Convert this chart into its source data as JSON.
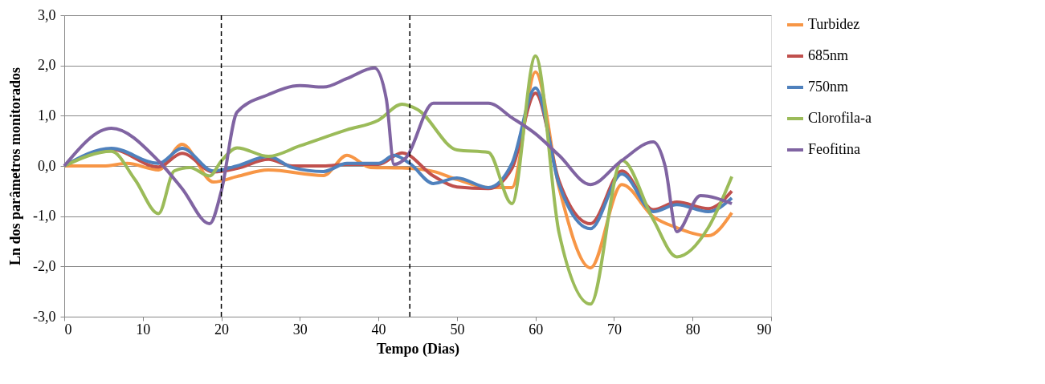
{
  "chart_data": {
    "type": "line",
    "xlabel": "Tempo (Dias)",
    "ylabel": "Ln dos parâmetros monitorados",
    "xlim": [
      0,
      90
    ],
    "xticks": [
      0,
      10,
      20,
      30,
      40,
      50,
      60,
      70,
      80,
      90
    ],
    "ylim": [
      -3,
      3
    ],
    "yticks": [
      {
        "value": -3,
        "label": "-3,0"
      },
      {
        "value": -2,
        "label": "-2,0"
      },
      {
        "value": -1,
        "label": "-1,0"
      },
      {
        "value": 0,
        "label": "0,0"
      },
      {
        "value": 1,
        "label": "1,0"
      },
      {
        "value": 2,
        "label": "2,0"
      },
      {
        "value": 3,
        "label": "3,0"
      }
    ],
    "grid": "y",
    "legend": "right",
    "marker": "none",
    "line_style": "solid",
    "ref_lines": [
      {
        "axis": "x",
        "value": 20,
        "color": "#000000",
        "line_style": "dashed"
      },
      {
        "axis": "x",
        "value": 44,
        "color": "#000000",
        "line_style": "dashed"
      }
    ],
    "series": [
      {
        "name": "Turbidez",
        "color": "#f79646",
        "x": [
          0,
          5,
          8,
          12,
          15,
          19,
          22,
          26,
          33,
          36,
          39,
          43,
          47,
          50,
          54,
          57,
          60,
          63,
          67,
          71,
          75,
          78,
          82,
          85
        ],
        "values": [
          0,
          0,
          0.05,
          -0.08,
          0.43,
          -0.32,
          -0.21,
          -0.08,
          -0.19,
          0.21,
          -0.03,
          -0.04,
          -0.11,
          -0.27,
          -0.43,
          -0.43,
          1.87,
          -0.43,
          -2.03,
          -0.37,
          -1.01,
          -1.23,
          -1.39,
          -0.93
        ]
      },
      {
        "name": "685nm",
        "color": "#c0504d",
        "x": [
          0,
          6,
          12,
          15,
          19,
          22,
          26,
          29,
          33,
          36,
          40,
          43,
          47,
          50,
          54,
          57,
          60,
          63,
          67,
          71,
          75,
          78,
          82,
          85
        ],
        "values": [
          0,
          0.33,
          -0.02,
          0.25,
          -0.12,
          -0.05,
          0.13,
          0,
          0,
          0.03,
          0.03,
          0.26,
          -0.2,
          -0.42,
          -0.45,
          -0.05,
          1.45,
          -0.3,
          -1.15,
          -0.1,
          -0.87,
          -0.72,
          -0.85,
          -0.5
        ]
      },
      {
        "name": "750nm",
        "color": "#4f81bd",
        "x": [
          0,
          6,
          12,
          15,
          19,
          22,
          26,
          29,
          33,
          36,
          40,
          42,
          44,
          47,
          50,
          54,
          57,
          60,
          63,
          67,
          71,
          75,
          78,
          82,
          85
        ],
        "values": [
          0,
          0.35,
          0.05,
          0.35,
          -0.1,
          0,
          0.19,
          -0.03,
          -0.11,
          0.05,
          0.05,
          0.21,
          0.05,
          -0.35,
          -0.24,
          -0.43,
          0.05,
          1.55,
          -0.37,
          -1.25,
          -0.16,
          -0.91,
          -0.77,
          -0.91,
          -0.64
        ]
      },
      {
        "name": "Clorofila-a",
        "color": "#9bbb59",
        "x": [
          0,
          6,
          9,
          12,
          14,
          16,
          18.5,
          20,
          22,
          26,
          30,
          36,
          40,
          43,
          45,
          50,
          54,
          57,
          60,
          63,
          67,
          71,
          75,
          78,
          82,
          85
        ],
        "values": [
          0,
          0.29,
          -0.27,
          -0.95,
          -0.1,
          -0.03,
          -0.2,
          0.1,
          0.36,
          0.19,
          0.4,
          0.72,
          0.91,
          1.23,
          1.12,
          0.32,
          0.27,
          -0.75,
          2.19,
          -1.33,
          -2.75,
          0.11,
          -1.07,
          -1.81,
          -1.23,
          -0.21
        ]
      },
      {
        "name": "Feofitina",
        "color": "#8064a2",
        "x": [
          0,
          6,
          12,
          15,
          18.5,
          20,
          22,
          26,
          30,
          33,
          36,
          39.5,
          41,
          42,
          43.5,
          47,
          50,
          54,
          57,
          60,
          63,
          67,
          71,
          75,
          76.5,
          78,
          81,
          85
        ],
        "values": [
          0,
          0.75,
          0.1,
          -0.45,
          -1.15,
          -0.5,
          1.07,
          1.42,
          1.6,
          1.57,
          1.74,
          1.95,
          1.34,
          0.03,
          0.16,
          1.25,
          1.25,
          1.25,
          0.96,
          0.64,
          0.21,
          -0.37,
          0.11,
          0.48,
          0,
          -1.31,
          -0.59,
          -0.75
        ]
      }
    ]
  }
}
